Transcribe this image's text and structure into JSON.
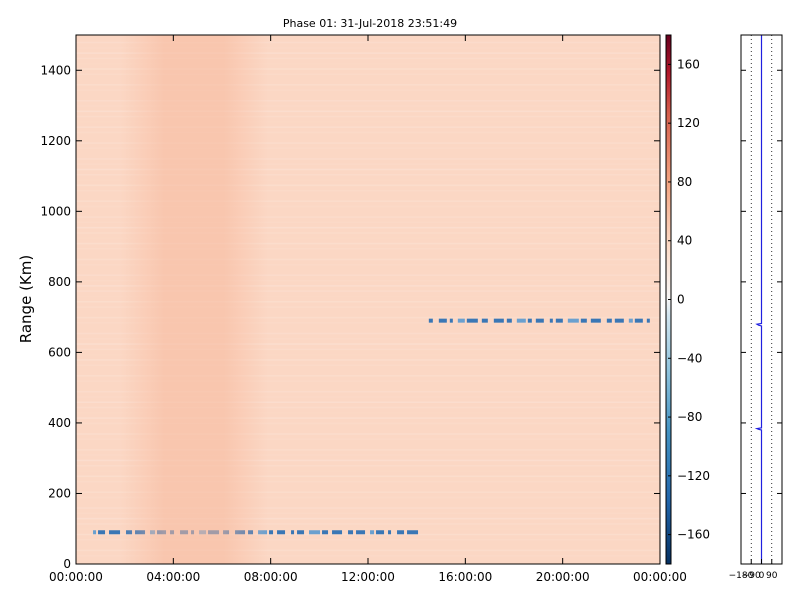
{
  "chart_data": [
    {
      "type": "heatmap",
      "title": "Phase 01: 31-Jul-2018 23:51:49",
      "xlabel": "",
      "ylabel": "Range (Km)",
      "x_ticks": [
        "00:00:00",
        "04:00:00",
        "08:00:00",
        "12:00:00",
        "16:00:00",
        "20:00:00",
        "00:00:00"
      ],
      "y_ticks": [
        0,
        200,
        400,
        600,
        800,
        1000,
        1200,
        1400
      ],
      "xlim_hours": [
        0,
        24
      ],
      "ylim": [
        0,
        1500
      ],
      "background_phase": 55,
      "features": [
        {
          "kind": "band",
          "t_start_h": 0.7,
          "t_end_h": 14.2,
          "range": 90,
          "phase": -140
        },
        {
          "kind": "band",
          "t_start_h": 14.5,
          "t_end_h": 23.8,
          "range": 690,
          "phase": -130
        },
        {
          "kind": "tint",
          "t_start_h": 1.8,
          "t_end_h": 7.9,
          "range_low": 0,
          "range_high": 1500,
          "phase": 75
        }
      ],
      "grid": false,
      "colors": {
        "neg": "#053061",
        "mid": "#f7f7f7",
        "pos": "#67001f",
        "background": "#fbd7c4",
        "band": "#3a77b5"
      }
    },
    {
      "type": "line",
      "x_ticks": [
        -180,
        -90,
        0,
        90
      ],
      "xlim": [
        -180,
        180
      ],
      "ylim": [
        0,
        1500
      ],
      "series": [
        {
          "values": [
            [
              0,
              0
            ],
            [
              0,
              380
            ],
            [
              -25,
              382
            ],
            [
              -40,
              384
            ],
            [
              0,
              386
            ],
            [
              0,
              675
            ],
            [
              -25,
              677
            ],
            [
              -40,
              680
            ],
            [
              0,
              682
            ],
            [
              0,
              1500
            ]
          ]
        }
      ],
      "colors": {
        "line": "#2020e0",
        "gridline": "#000000"
      }
    }
  ],
  "colorbar": {
    "ticks": [
      160,
      120,
      80,
      40,
      0,
      -40,
      -80,
      -120,
      -160
    ],
    "labels": [
      "160",
      "120",
      "80",
      "40",
      "0",
      "−40",
      "−80",
      "−120",
      "−160"
    ],
    "range": [
      -180,
      180
    ]
  }
}
